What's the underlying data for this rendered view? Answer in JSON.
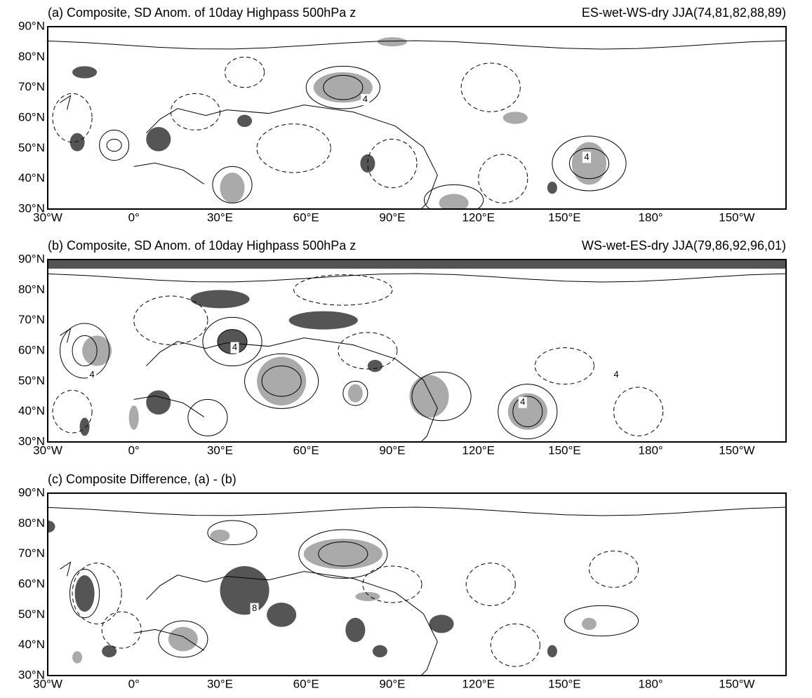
{
  "panels": [
    {
      "title": "(a) Composite, SD Anom. of 10day Highpass 500hPa z",
      "subtitle": "ES-wet-WS-dry JJA(74,81,82,88,89)",
      "contour_labels": [
        "4",
        "4"
      ]
    },
    {
      "title": "(b) Composite, SD Anom. of 10day Highpass 500hPa z",
      "subtitle": "WS-wet-ES-dry JJA(79,86,92,96,01)",
      "contour_labels": [
        "4",
        "4",
        "4",
        "4"
      ]
    },
    {
      "title": "(c) Composite Difference, (a) - (b)",
      "contour_labels": [
        "8"
      ]
    }
  ],
  "lat_labels": [
    "90°N",
    "80°N",
    "70°N",
    "60°N",
    "50°N",
    "40°N",
    "30°N"
  ],
  "lon_labels": [
    "30°W",
    "0°",
    "30°E",
    "60°E",
    "90°E",
    "120°E",
    "150°E",
    "180°",
    "150°W"
  ]
}
